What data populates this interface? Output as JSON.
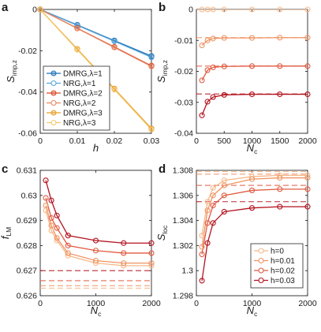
{
  "chart_data": [
    {
      "panel": "a",
      "type": "line",
      "xlabel": "h",
      "ylabel": "S_imp,z",
      "ylabel_main": "S",
      "ylabel_sub": "imp,z",
      "xlim": [
        0,
        0.03
      ],
      "ylim": [
        -0.06,
        0
      ],
      "xticks": [
        "0",
        "0.01",
        "0.02",
        "0.03"
      ],
      "yticks": [
        "0",
        "-0.02",
        "-0.04",
        "-0.06"
      ],
      "grid": false,
      "legend_placement": "lower-left",
      "series": [
        {
          "name": "DMRG,λ=1",
          "method": "DMRG",
          "lambda": 1,
          "color": "#1f74b9",
          "marker": "filled-circle",
          "x": [
            0,
            0.01,
            0.02,
            0.03
          ],
          "values": [
            0,
            -0.0075,
            -0.0151,
            -0.0226
          ]
        },
        {
          "name": "NRG,λ=1",
          "method": "NRG",
          "lambda": 1,
          "color": "#5aa6d9",
          "marker": "open-circle",
          "x": [
            0,
            0.01,
            0.02,
            0.03
          ],
          "values": [
            0,
            -0.0077,
            -0.0154,
            -0.0232
          ]
        },
        {
          "name": "DMRG,λ=2",
          "method": "DMRG",
          "lambda": 2,
          "color": "#d94b2b",
          "marker": "filled-circle",
          "x": [
            0,
            0.01,
            0.02,
            0.03
          ],
          "values": [
            0,
            -0.0091,
            -0.0182,
            -0.0273
          ]
        },
        {
          "name": "NRG,λ=2",
          "method": "NRG",
          "lambda": 2,
          "color": "#e8865e",
          "marker": "open-circle",
          "x": [
            0,
            0.01,
            0.02,
            0.03
          ],
          "values": [
            0,
            -0.0092,
            -0.0184,
            -0.0276
          ]
        },
        {
          "name": "DMRG,λ=3",
          "method": "DMRG",
          "lambda": 3,
          "color": "#e6a02a",
          "marker": "filled-circle",
          "x": [
            0,
            0.01,
            0.02,
            0.03
          ],
          "values": [
            0,
            -0.0192,
            -0.0384,
            -0.0577
          ]
        },
        {
          "name": "NRG,λ=3",
          "method": "NRG",
          "lambda": 3,
          "color": "#f4c76a",
          "marker": "open-circle",
          "x": [
            0,
            0.01,
            0.02,
            0.03
          ],
          "values": [
            0,
            -0.0195,
            -0.0388,
            -0.0582
          ]
        }
      ]
    },
    {
      "panel": "b",
      "type": "line",
      "xlabel": "N_c",
      "xlabel_main": "N",
      "xlabel_sub": "c",
      "ylabel": "S_imp,z",
      "ylabel_main": "S",
      "ylabel_sub": "imp,z",
      "xlim": [
        0,
        2000
      ],
      "ylim": [
        -0.04,
        0
      ],
      "xticks": [
        "0",
        "500",
        "1000",
        "1500",
        "2000"
      ],
      "yticks": [
        "0",
        "-0.01",
        "-0.02",
        "-0.03",
        "-0.04"
      ],
      "grid": false,
      "series": [
        {
          "name": "h=0",
          "color": "#f6b88a",
          "x": [
            100,
            200,
            300,
            500,
            1000,
            1500,
            2000
          ],
          "values": [
            0,
            0,
            0,
            0,
            0,
            0,
            0
          ],
          "reference": 0
        },
        {
          "name": "h=0.01",
          "color": "#ef9463",
          "x": [
            100,
            200,
            300,
            500,
            1000,
            1500,
            2000
          ],
          "values": [
            -0.0116,
            -0.01,
            -0.0094,
            -0.0092,
            -0.0092,
            -0.0091,
            -0.0091
          ],
          "reference": -0.0091
        },
        {
          "name": "h=0.02",
          "color": "#e05a40",
          "x": [
            100,
            200,
            300,
            500,
            1000,
            1500,
            2000
          ],
          "values": [
            -0.0229,
            -0.0196,
            -0.0187,
            -0.0184,
            -0.0183,
            -0.0183,
            -0.0183
          ],
          "reference": -0.0183
        },
        {
          "name": "h=0.03",
          "color": "#b3121e",
          "x": [
            100,
            200,
            300,
            500,
            1000,
            1500,
            2000
          ],
          "values": [
            -0.0342,
            -0.0298,
            -0.0283,
            -0.0276,
            -0.0274,
            -0.0274,
            -0.0274
          ],
          "reference": -0.0273
        }
      ]
    },
    {
      "panel": "c",
      "type": "line",
      "xlabel": "N_c",
      "xlabel_main": "N",
      "xlabel_sub": "c",
      "ylabel": "f_LM",
      "ylabel_main": "f",
      "ylabel_sub": "LM",
      "xlim": [
        0,
        2000
      ],
      "ylim": [
        0.626,
        0.631
      ],
      "xticks": [
        "0",
        "1000",
        "2000"
      ],
      "yticks": [
        "0.626",
        "0.627",
        "0.628",
        "0.629",
        "0.63",
        "0.631"
      ],
      "grid": false,
      "series": [
        {
          "name": "h=0",
          "color": "#f6b88a",
          "x": [
            100,
            200,
            300,
            500,
            1000,
            1500,
            2000
          ],
          "values": [
            0.6294,
            0.6286,
            0.6282,
            0.6276,
            0.6273,
            0.6272,
            0.6272
          ],
          "reference": 0.6263
        },
        {
          "name": "h=0.01",
          "color": "#ef9463",
          "x": [
            100,
            200,
            300,
            500,
            1000,
            1500,
            2000
          ],
          "values": [
            0.6296,
            0.6288,
            0.6283,
            0.6277,
            0.6274,
            0.6273,
            0.6273
          ],
          "reference": 0.6264
        },
        {
          "name": "h=0.02",
          "color": "#e05a40",
          "x": [
            100,
            200,
            300,
            500,
            1000,
            1500,
            2000
          ],
          "values": [
            0.6299,
            0.6291,
            0.6287,
            0.628,
            0.6278,
            0.6277,
            0.6277
          ],
          "reference": 0.6266
        },
        {
          "name": "h=0.03",
          "color": "#b3121e",
          "x": [
            100,
            200,
            300,
            500,
            1000,
            1500,
            2000
          ],
          "values": [
            0.6306,
            0.6298,
            0.6292,
            0.6284,
            0.6282,
            0.6281,
            0.6281
          ],
          "reference": 0.627
        }
      ]
    },
    {
      "panel": "d",
      "type": "line",
      "xlabel": "N_c",
      "xlabel_main": "N",
      "xlabel_sub": "c",
      "ylabel": "S_loc",
      "ylabel_main": "S",
      "ylabel_sub": "loc",
      "xlim": [
        0,
        2000
      ],
      "ylim": [
        1.298,
        1.308
      ],
      "xticks": [
        "0",
        "1000",
        "2000"
      ],
      "yticks": [
        "1.298",
        "1.3",
        "1.302",
        "1.304",
        "1.306",
        "1.308"
      ],
      "grid": false,
      "legend_placement": "lower-right",
      "series": [
        {
          "name": "h=0",
          "color": "#f6b88a",
          "x": [
            100,
            200,
            300,
            500,
            1000,
            1500,
            2000
          ],
          "values": [
            1.3028,
            1.3055,
            1.3066,
            1.3072,
            1.3075,
            1.3076,
            1.3076
          ],
          "reference": 1.3079
        },
        {
          "name": "h=0.01",
          "color": "#ef9463",
          "x": [
            100,
            200,
            300,
            500,
            1000,
            1500,
            2000
          ],
          "values": [
            1.3019,
            1.3048,
            1.306,
            1.3068,
            1.3073,
            1.3074,
            1.3074
          ],
          "reference": 1.3077
        },
        {
          "name": "h=0.02",
          "color": "#e05a40",
          "x": [
            100,
            200,
            300,
            500,
            1000,
            1500,
            2000
          ],
          "values": [
            1.3013,
            1.3038,
            1.3052,
            1.306,
            1.3064,
            1.3065,
            1.3065
          ],
          "reference": 1.3068
        },
        {
          "name": "h=0.03",
          "color": "#b3121e",
          "x": [
            100,
            200,
            300,
            500,
            1000,
            1500,
            2000
          ],
          "values": [
            1.2992,
            1.3022,
            1.3038,
            1.3047,
            1.305,
            1.3051,
            1.3051
          ],
          "reference": 1.3055
        }
      ]
    }
  ]
}
